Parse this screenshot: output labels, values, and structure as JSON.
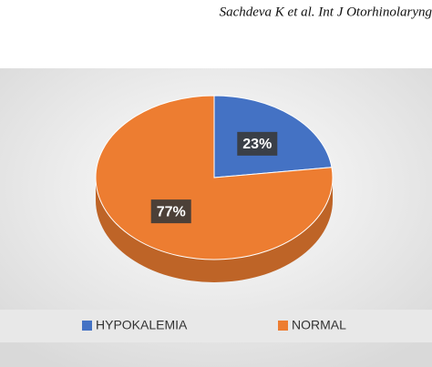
{
  "header": "Sachdeva K et al. Int J Otorhinolaryng",
  "chart_data": {
    "type": "pie",
    "categories": [
      "HYPOKALEMIA",
      "NORMAL"
    ],
    "values": [
      23,
      77
    ],
    "value_labels": [
      "23%",
      "77%"
    ],
    "colors": [
      "#4472c4",
      "#ed7d31"
    ],
    "legend": "bottom"
  }
}
